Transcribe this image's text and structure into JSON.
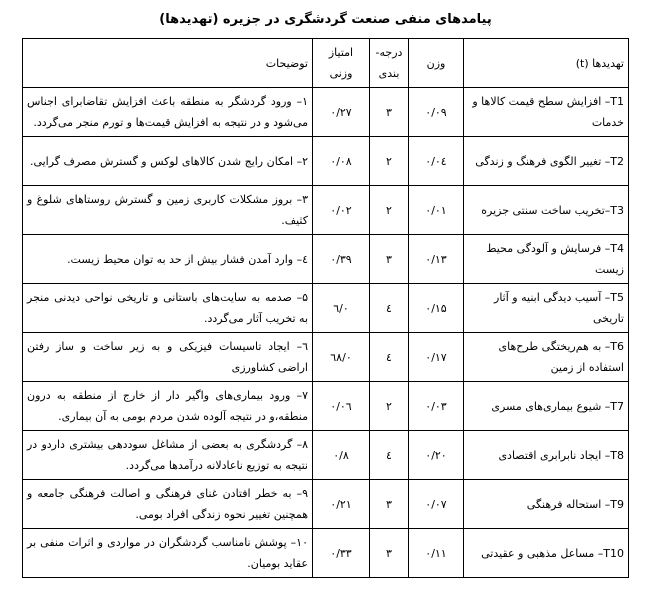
{
  "title": "پیامدهای منفی صنعت گردشگری در جزیره (تهدیدها)",
  "headers": {
    "threats": "تهدیدها (t)",
    "weight": "وزن",
    "rank": "درجه-بندی",
    "score": "امتیاز وزنی",
    "description": "توضیحات"
  },
  "rows": [
    {
      "threat": "T1– افزایش سطح قیمت کالاها و خدمات",
      "weight": "۰/۰۹",
      "rank": "۳",
      "score": "۰/۲۷",
      "description": "۱– ورود گردشگر به منطقه باعث افزایش تقاضابرای اجناس می‌شود و در نتیجه به افزایش قیمت‌ها و تورم منجر می‌گردد."
    },
    {
      "threat": "T2– تغییر الگوی فرهنگ و زندگی",
      "weight": "۰/۰٤",
      "rank": "۲",
      "score": "۰/۰۸",
      "description": "۲– امکان رایج شدن کالاهای لوکس و گسترش مصرف گرایی."
    },
    {
      "threat": "T3–تخریب ساخت سنتی جزیره",
      "weight": "۰/۰۱",
      "rank": "۲",
      "score": "۰/۰۲",
      "description": "۳– بروز مشکلات کاربری زمین و گسترش روستاهای شلوغ و کثیف."
    },
    {
      "threat": "T4– فرسایش و آلودگی محیط زیست",
      "weight": "۰/۱۳",
      "rank": "۳",
      "score": "۰/۳۹",
      "description": "٤– وارد آمدن فشار بیش از حد به توان محیط زیست."
    },
    {
      "threat": "T5– آسیب دیدگی ابنیه و آثار تاریخی",
      "weight": "۰/۱۵",
      "rank": "٤",
      "score": "۰/٦",
      "description": "۵– صدمه به سایت‌های باستانی و تاریخی نواحی دیدنی منجر به تخریب آثار می‌گردد."
    },
    {
      "threat": "T6– به هم‌ریختگی طرح‌های استفاده از زمین",
      "weight": "۰/۱۷",
      "rank": "٤",
      "score": "۰/٦۸",
      "description": "٦– ایجاد تاسیسات فیزیکی و به زیر ساخت و ساز رفتن اراضی کشاورزی"
    },
    {
      "threat": "T7– شیوع بیماری‌های مسری",
      "weight": "۰/۰۳",
      "rank": "۲",
      "score": "۰/۰٦",
      "description": "۷– ورود بیماری‌های واگیر دار از خارج از منطقه به درون منطقه،و در نتیجه آلوده شدن مردم بومی به آن بیماری."
    },
    {
      "threat": "T8– ایجاد نابرابری اقتصادی",
      "weight": "۰/۲۰",
      "rank": "٤",
      "score": "۰/۸",
      "description": "۸– گردشگری به بعضی از مشاغل سوددهی بیشتری داردو در نتیجه به توزیع ناعادلانه درآمدها می‌گردد."
    },
    {
      "threat": "T9– استحاله فرهنگی",
      "weight": "۰/۰۷",
      "rank": "۳",
      "score": "۰/۲۱",
      "description": "۹– به خطر افتادن غنای فرهنگی و اصالت فرهنگی جامعه و همچنین تغییر نحوه زندگی افراد بومی."
    },
    {
      "threat": "T10– مساعل مذهبی و عقیدتی",
      "weight": "۰/۱۱",
      "rank": "۳",
      "score": "۰/۳۳",
      "description": "۱۰– پوشش نامناسب گردشگران در مواردی و اثرات منفی بر عقاید بومیان."
    }
  ]
}
